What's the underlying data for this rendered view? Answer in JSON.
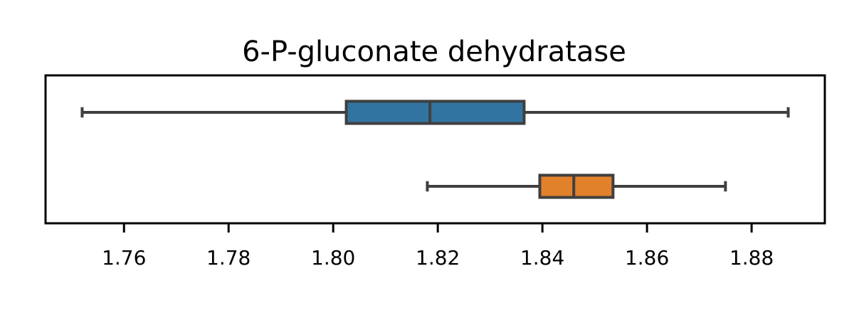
{
  "chart_data": {
    "type": "boxplot",
    "orientation": "horizontal",
    "title": "6-P-gluconate dehydratase",
    "xlabel": "",
    "ylabel": "",
    "xlim": [
      1.745,
      1.894
    ],
    "xticks": [
      "1.76",
      "1.78",
      "1.80",
      "1.82",
      "1.84",
      "1.86",
      "1.88"
    ],
    "grid": false,
    "series": [
      {
        "color": "#3274a1",
        "whisker_low": 1.752,
        "q1": 1.8025,
        "median": 1.8185,
        "q3": 1.8365,
        "whisker_high": 1.887
      },
      {
        "color": "#e1812c",
        "whisker_low": 1.818,
        "q1": 1.8395,
        "median": 1.846,
        "q3": 1.8535,
        "whisker_high": 1.875
      }
    ]
  }
}
